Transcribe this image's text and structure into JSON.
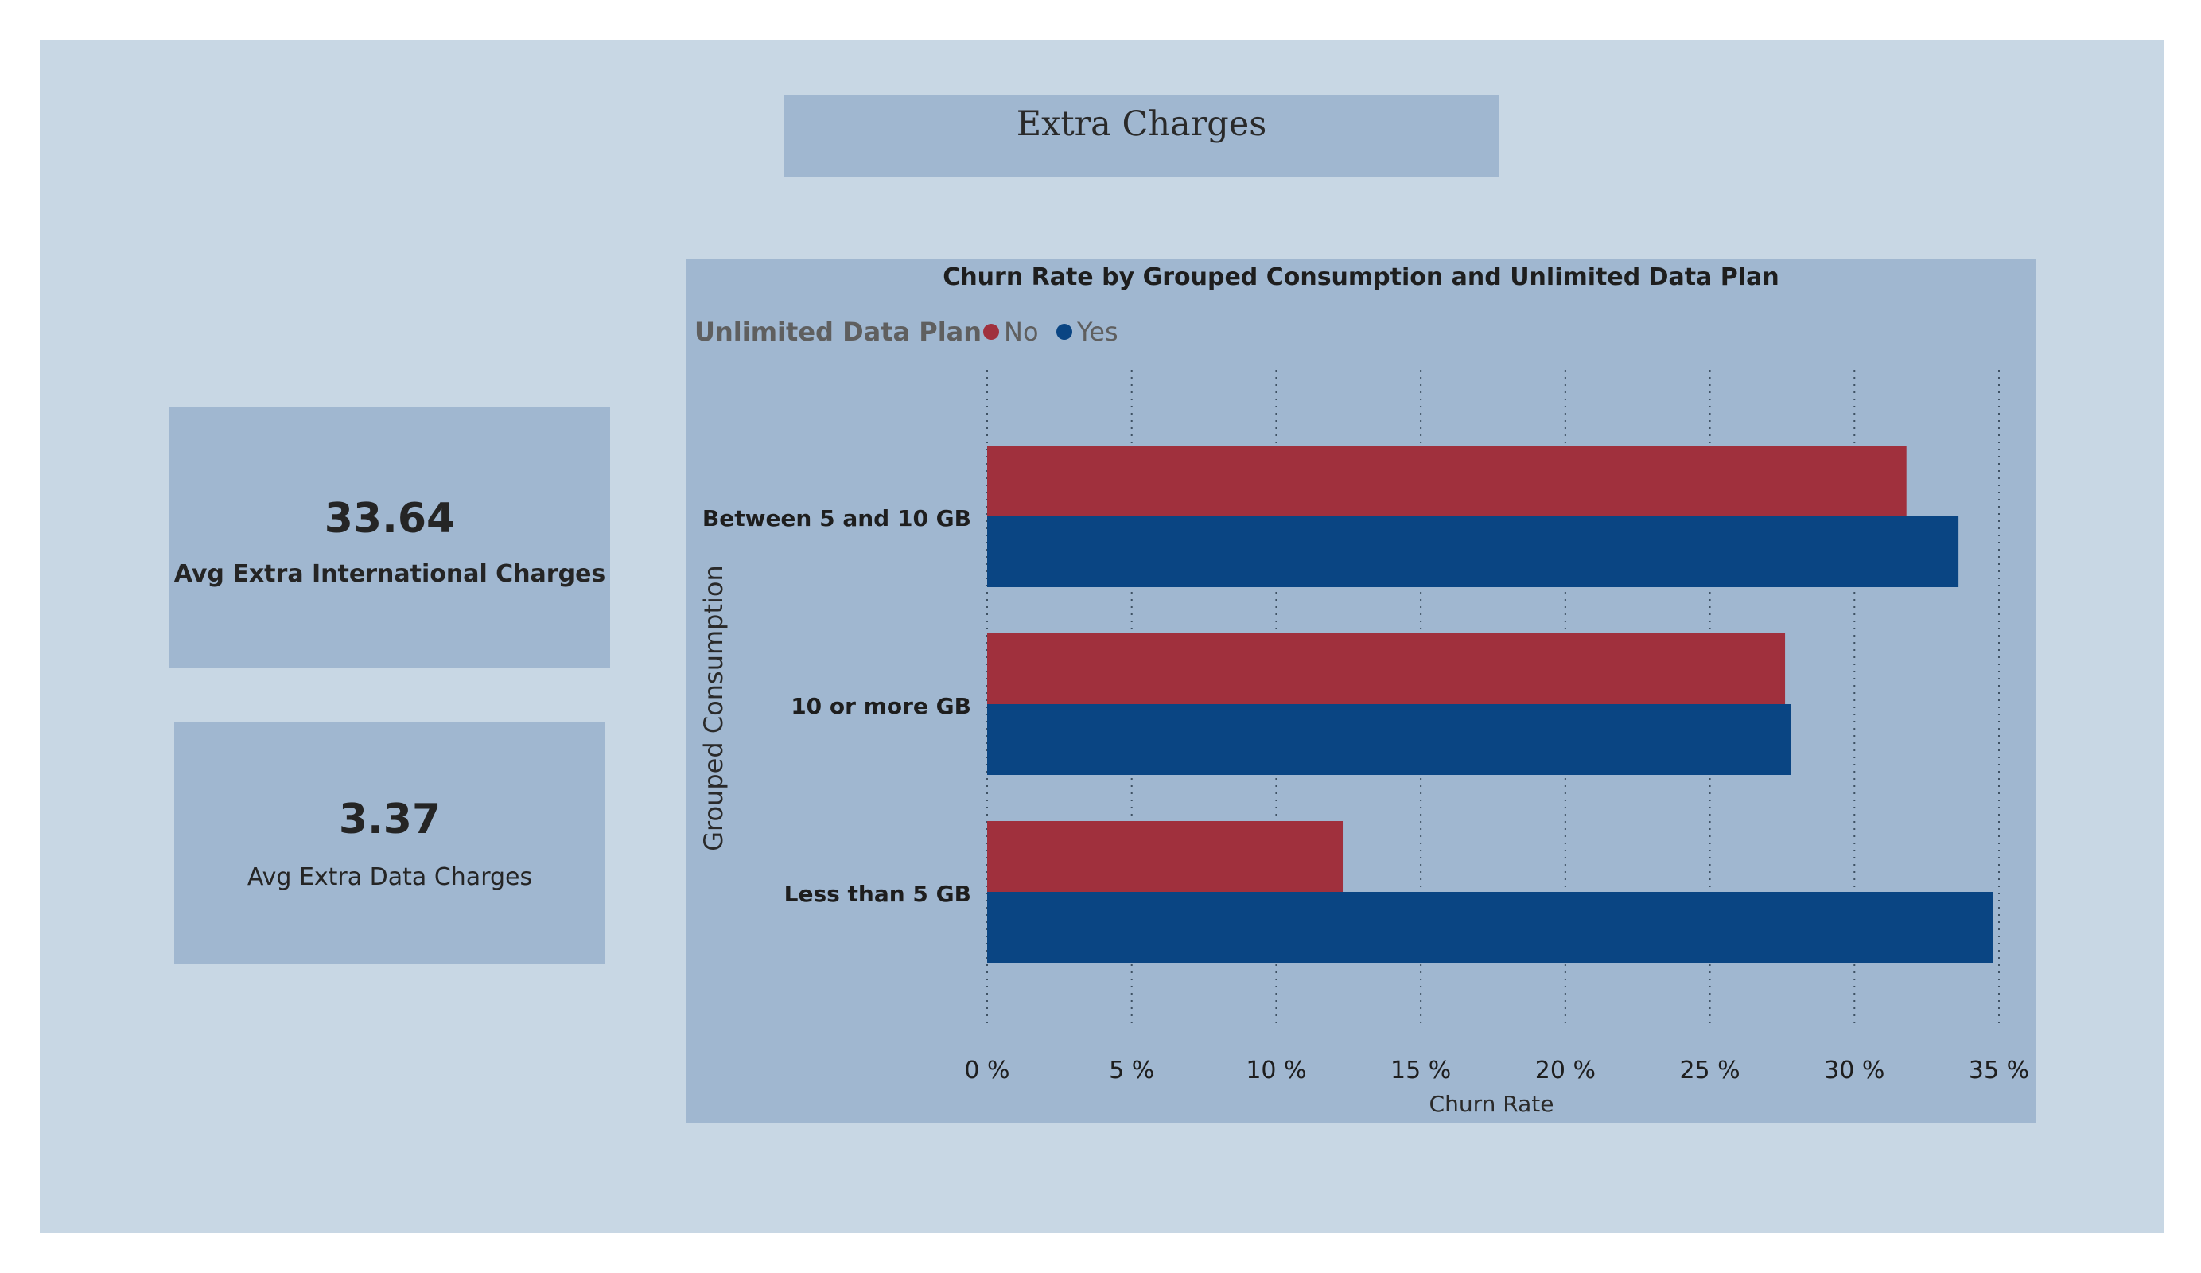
{
  "page": {
    "title": "Extra Charges"
  },
  "kpis": [
    {
      "value": "33.64",
      "label": "Avg Extra International Charges"
    },
    {
      "value": "3.37",
      "label": "Avg Extra Data Charges"
    }
  ],
  "colors": {
    "page_bg": "#c8d7e4",
    "panel_bg": "#a0b7d0",
    "no": "#a0303d",
    "yes": "#0a4583"
  },
  "chart_data": {
    "type": "bar",
    "orientation": "horizontal",
    "title": "Churn Rate by Grouped Consumption and Unlimited Data Plan",
    "legend_title": "Unlimited Data Plan",
    "legend_position": "top-left",
    "categories": [
      "Between 5 and 10 GB",
      "10 or more GB",
      "Less than 5 GB"
    ],
    "series": [
      {
        "name": "No",
        "color": "#a0303d",
        "values": [
          31.8,
          27.6,
          12.3
        ]
      },
      {
        "name": "Yes",
        "color": "#0a4583",
        "values": [
          33.6,
          27.8,
          34.8
        ]
      }
    ],
    "xlabel": "Churn Rate",
    "ylabel": "Grouped Consumption",
    "xlim": [
      0,
      35
    ],
    "xticks": [
      0,
      5,
      10,
      15,
      20,
      25,
      30,
      35
    ],
    "xtick_labels": [
      "0 %",
      "5 %",
      "10 %",
      "15 %",
      "20 %",
      "25 %",
      "30 %",
      "35 %"
    ],
    "grid": "vertical-dotted"
  }
}
